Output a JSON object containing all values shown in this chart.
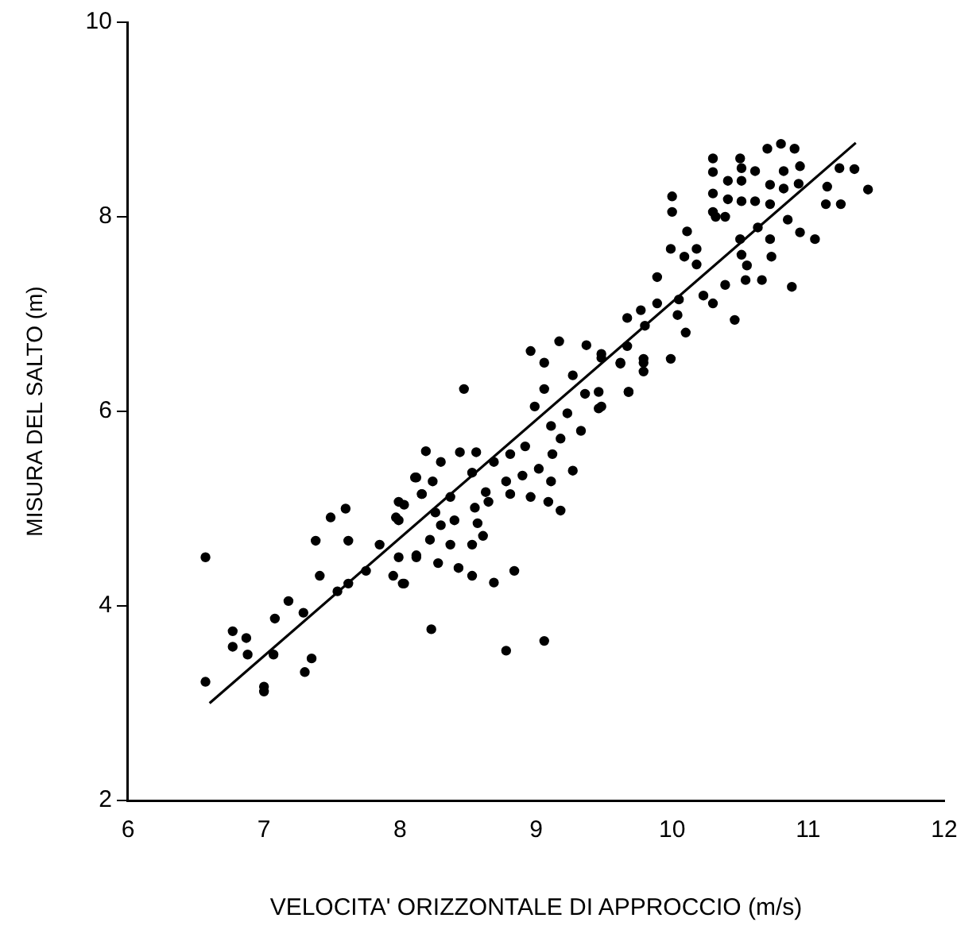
{
  "chart_data": {
    "type": "scatter",
    "xlabel": "VELOCITA' ORIZZONTALE DI APPROCCIO (m/s)",
    "ylabel": "MISURA DEL SALTO (m)",
    "xlim": [
      6,
      12
    ],
    "xticks": [
      6,
      7,
      8,
      9,
      10,
      11,
      12
    ],
    "ylim": [
      2,
      10
    ],
    "yticks": [
      2,
      4,
      6,
      8,
      10
    ],
    "grid": false,
    "legend": false,
    "marker": "circle",
    "series": [
      {
        "color": "#000000",
        "x": [
          6.57,
          6.57,
          6.77,
          6.87,
          6.77,
          6.88,
          7.0,
          7.0,
          7.07,
          7.08,
          7.18,
          7.29,
          7.35,
          7.3,
          7.38,
          7.49,
          7.6,
          7.62,
          7.41,
          7.54,
          7.62,
          7.75,
          7.85,
          7.97,
          7.95,
          8.03,
          7.99,
          8.11,
          8.12,
          8.16,
          8.96,
          9.17,
          9.37,
          9.06,
          9.48,
          9.62,
          9.79,
          8.47,
          9.06,
          9.27,
          9.68,
          9.36,
          9.48,
          8.99,
          9.23,
          9.11,
          9.33,
          9.18,
          8.92,
          8.81,
          9.12,
          8.19,
          8.44,
          8.56,
          8.3,
          8.69,
          8.12,
          8.53,
          8.9,
          9.02,
          9.11,
          9.27,
          8.78,
          8.63,
          8.24,
          8.16,
          8.37,
          8.81,
          8.96,
          9.09,
          8.03,
          8.26,
          8.55,
          9.18,
          8.65,
          7.99,
          8.4,
          8.57,
          8.3,
          8.61,
          8.22,
          8.37,
          8.53,
          7.99,
          8.12,
          8.28,
          8.43,
          8.53,
          8.84,
          8.69,
          8.02,
          8.23,
          8.78,
          9.06,
          10.3,
          10.51,
          10.61,
          10.82,
          10.94,
          11.23,
          11.34,
          11.44,
          10.0,
          10.0,
          10.3,
          10.3,
          10.41,
          10.41,
          10.51,
          10.51,
          10.61,
          10.72,
          10.72,
          10.82,
          10.93,
          11.14,
          11.13,
          11.24,
          10.32,
          10.39,
          10.11,
          10.5,
          10.63,
          10.85,
          10.94,
          11.05,
          10.72,
          9.99,
          10.18,
          10.09,
          10.18,
          10.51,
          10.73,
          10.55,
          9.89,
          10.54,
          10.66,
          10.39,
          10.88,
          10.23,
          10.3,
          10.05,
          9.77,
          9.89,
          9.67,
          10.04,
          10.1,
          10.46,
          9.8,
          9.67,
          9.48,
          9.62,
          9.79,
          9.79,
          9.99,
          9.46,
          9.68,
          9.46,
          10.8,
          10.7,
          10.9,
          10.5,
          10.3
        ],
        "values": [
          4.5,
          3.22,
          3.74,
          3.67,
          3.58,
          3.5,
          3.17,
          3.12,
          3.5,
          3.87,
          4.05,
          3.93,
          3.46,
          3.32,
          4.67,
          4.91,
          5.0,
          4.67,
          4.31,
          4.15,
          4.23,
          4.36,
          4.63,
          4.91,
          4.31,
          4.23,
          5.07,
          5.32,
          4.5,
          5.15,
          6.62,
          6.72,
          6.68,
          6.5,
          6.59,
          6.5,
          6.5,
          6.23,
          6.23,
          6.37,
          6.2,
          6.18,
          6.05,
          6.05,
          5.98,
          5.85,
          5.8,
          5.72,
          5.64,
          5.56,
          5.56,
          5.59,
          5.58,
          5.58,
          5.48,
          5.48,
          5.32,
          5.37,
          5.34,
          5.41,
          5.28,
          5.39,
          5.28,
          5.17,
          5.28,
          5.15,
          5.12,
          5.15,
          5.12,
          5.07,
          5.04,
          4.96,
          5.01,
          4.98,
          5.07,
          4.88,
          4.88,
          4.85,
          4.83,
          4.72,
          4.68,
          4.63,
          4.63,
          4.5,
          4.52,
          4.44,
          4.39,
          4.31,
          4.36,
          4.24,
          4.23,
          3.76,
          3.54,
          3.64,
          8.46,
          8.5,
          8.47,
          8.47,
          8.52,
          8.5,
          8.49,
          8.28,
          8.21,
          8.05,
          8.24,
          8.05,
          8.37,
          8.18,
          8.37,
          8.16,
          8.16,
          8.33,
          8.13,
          8.29,
          8.34,
          8.31,
          8.13,
          8.13,
          8.0,
          8.0,
          7.85,
          7.77,
          7.89,
          7.97,
          7.84,
          7.77,
          7.77,
          7.67,
          7.67,
          7.59,
          7.51,
          7.61,
          7.59,
          7.5,
          7.38,
          7.35,
          7.35,
          7.3,
          7.28,
          7.19,
          7.11,
          7.15,
          7.04,
          7.11,
          6.96,
          6.99,
          6.81,
          6.94,
          6.88,
          6.67,
          6.55,
          6.49,
          6.54,
          6.41,
          6.54,
          6.2,
          6.2,
          6.03,
          8.75,
          8.7,
          8.7,
          8.6,
          8.6
        ]
      },
      {
        "type": "line",
        "marker": "none",
        "color": "#000000",
        "x": [
          6.6,
          11.35
        ],
        "values": [
          3.0,
          8.76
        ]
      }
    ]
  }
}
